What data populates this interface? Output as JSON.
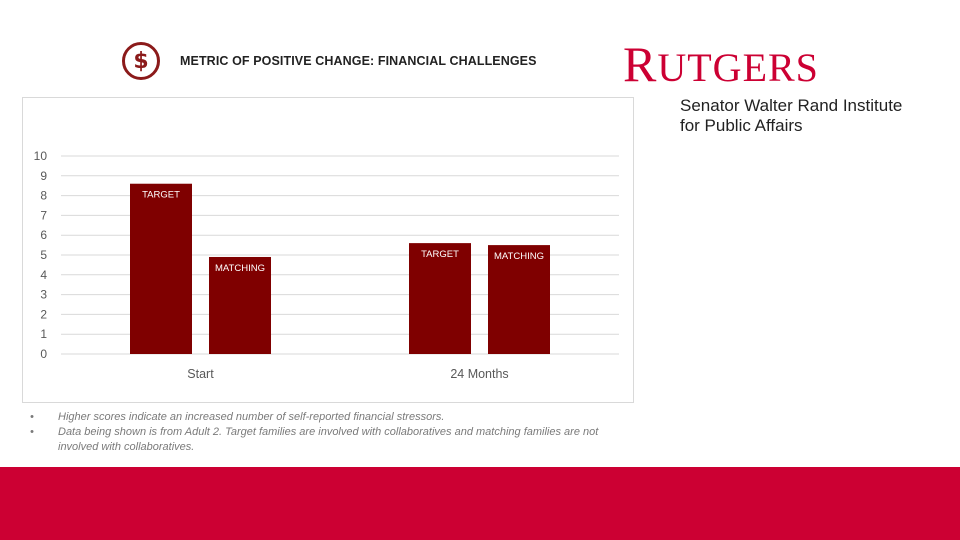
{
  "header": {
    "icon": "dollar-icon",
    "icon_glyph": "$",
    "title": "METRIC OF POSITIVE CHANGE: FINANCIAL CHALLENGES"
  },
  "logo": {
    "word": "RUTGERS",
    "line1": "Senator Walter Rand Institute",
    "line2": "for Public Affairs"
  },
  "colors": {
    "bar": "#7f0000",
    "brand": "#cc0033"
  },
  "chart_data": {
    "type": "bar",
    "title": "",
    "xlabel": "",
    "ylabel": "",
    "categories": [
      "Start",
      "24 Months"
    ],
    "series": [
      {
        "values": [
          8.6,
          5.6
        ]
      },
      {
        "values": [
          4.9,
          5.5
        ]
      }
    ],
    "data_labels": [
      [
        "TARGET",
        "TARGET"
      ],
      [
        "MATCHING",
        "MATCHING"
      ]
    ],
    "ylim": [
      0,
      10
    ],
    "yticks": [
      0,
      1,
      2,
      3,
      4,
      5,
      6,
      7,
      8,
      9,
      10
    ],
    "grid": true,
    "legend": "none"
  },
  "notes": [
    "Higher scores indicate an increased number of self-reported financial stressors.",
    "Data being shown is from Adult 2. Target families are involved with collaboratives and matching families are not involved with collaboratives."
  ]
}
